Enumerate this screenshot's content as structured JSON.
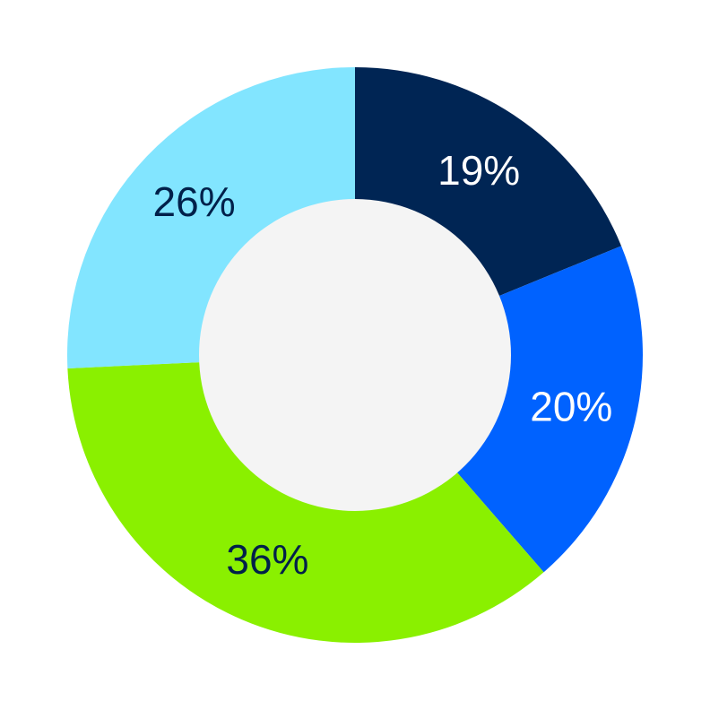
{
  "chart_data": {
    "type": "pie",
    "variant": "donut",
    "start": "top",
    "direction": "clockwise",
    "slices": [
      {
        "label": "19%",
        "value": 19,
        "color": "#002554",
        "label_color": "#ffffff"
      },
      {
        "label": "20%",
        "value": 20,
        "color": "#0062ff",
        "label_color": "#ffffff"
      },
      {
        "label": "36%",
        "value": 36,
        "color": "#8af000",
        "label_color": "#00204a"
      },
      {
        "label": "26%",
        "value": 26,
        "color": "#82e5ff",
        "label_color": "#00204a"
      }
    ],
    "center_color": "#f4f4f4",
    "legend": "none"
  }
}
